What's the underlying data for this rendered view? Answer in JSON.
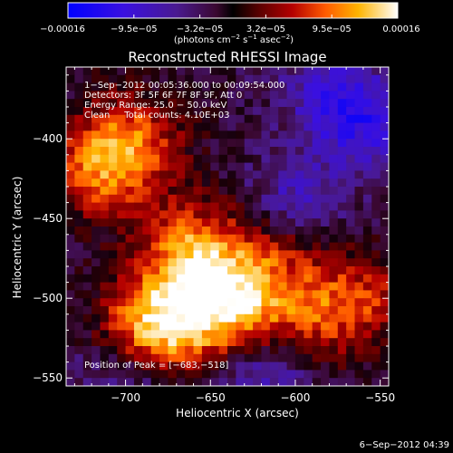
{
  "chart_data": {
    "type": "heatmap",
    "title": "Reconstructed RHESSI Image",
    "xlabel": "Heliocentric X (arcsec)",
    "ylabel": "Heliocentric Y (arcsec)",
    "xlim": [
      -735,
      -545
    ],
    "ylim": [
      -555,
      -355
    ],
    "x_ticks": [
      -700,
      -650,
      -600,
      -550
    ],
    "y_ticks": [
      -400,
      -450,
      -500,
      -550
    ],
    "x_tick_labels": [
      "−700",
      "−650",
      "−600",
      "−550"
    ],
    "y_tick_labels": [
      "−400",
      "−450",
      "−500",
      "−550"
    ],
    "colorbar": {
      "min": -0.00016,
      "max": 0.00016,
      "tick_labels": [
        "−0.00016",
        "−9.5e−05",
        "−3.2e−05",
        "3.2e−05",
        "9.5e−05",
        "0.00016"
      ],
      "units_main": "(photons cm",
      "units_sup1": "−2",
      "units_mid": " s",
      "units_sup2": "−1",
      "units_mid2": " asec",
      "units_sup3": "−2",
      "units_end": ")"
    },
    "annotations": [
      "1−Sep−2012 00:05:36.000 to 00:09:54.000",
      "Detectors: 3F 5F 6F 7F 8F 9F, Att 0",
      "Energy Range: 25.0 − 50.0 keV",
      "Clean     Total counts: 4.10E+03"
    ],
    "peak_label": "Position of Peak = [−683,−518]",
    "footer_date": "6−Sep−2012 04:39",
    "hot_regions": [
      {
        "x": -683,
        "y": -518,
        "value": 0.00016
      },
      {
        "x": -640,
        "y": -505,
        "value": 0.00015
      },
      {
        "x": -660,
        "y": -470,
        "value": 0.00012
      },
      {
        "x": -715,
        "y": -420,
        "value": 0.0001
      },
      {
        "x": -695,
        "y": -400,
        "value": 9e-05
      },
      {
        "x": -590,
        "y": -510,
        "value": 8e-05
      },
      {
        "x": -555,
        "y": -500,
        "value": 7e-05
      },
      {
        "x": -610,
        "y": -470,
        "value": 6e-05
      }
    ],
    "cold_regions": [
      {
        "x": -560,
        "y": -390,
        "value": -8e-05
      },
      {
        "x": -600,
        "y": -440,
        "value": -7e-05
      },
      {
        "x": -620,
        "y": -550,
        "value": -7e-05
      },
      {
        "x": -700,
        "y": -550,
        "value": -6e-05
      },
      {
        "x": -580,
        "y": -370,
        "value": -6e-05
      }
    ]
  }
}
